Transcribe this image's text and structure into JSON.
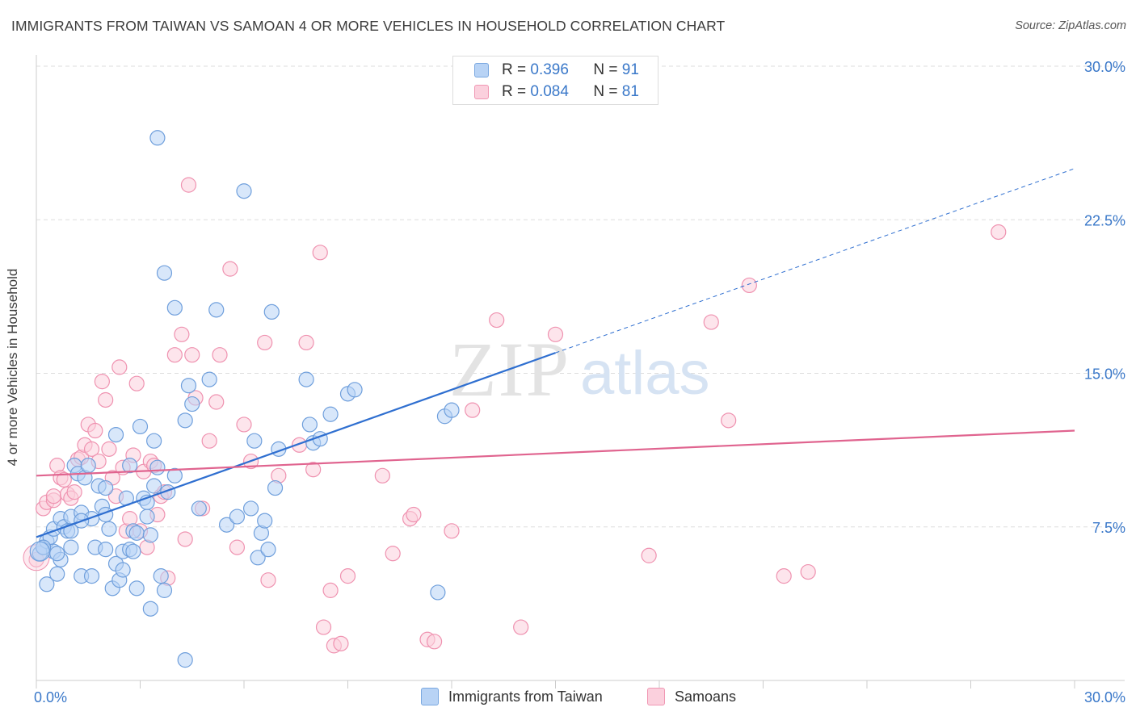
{
  "header": {
    "title": "IMMIGRANTS FROM TAIWAN VS SAMOAN 4 OR MORE VEHICLES IN HOUSEHOLD CORRELATION CHART",
    "source": "Source: ZipAtlas.com"
  },
  "legend_stats": {
    "r_label": "R =",
    "n_label": "N =",
    "rows": [
      {
        "r": "0.396",
        "n": "91"
      },
      {
        "r": "0.084",
        "n": "81"
      }
    ]
  },
  "watermark": {
    "zip": "ZIP",
    "atlas": "atlas"
  },
  "colors": {
    "blue_fill": "#b8d3f5",
    "blue_stroke": "#6f9fdc",
    "blue_line": "#2f6fd0",
    "pink_fill": "#fbd0dd",
    "pink_stroke": "#ef92b0",
    "pink_line": "#e0648f",
    "tick_label": "#3a78c9",
    "grid": "#dddddd"
  },
  "chart_data": {
    "type": "scatter",
    "xlabel": "",
    "ylabel": "4 or more Vehicles in Household",
    "xlim": [
      0,
      30
    ],
    "ylim": [
      0,
      30
    ],
    "x_tick_labels": [
      "0.0%",
      "30.0%"
    ],
    "y_ticks": [
      7.5,
      15.0,
      22.5,
      30.0
    ],
    "y_tick_labels": [
      "7.5%",
      "15.0%",
      "22.5%",
      "30.0%"
    ],
    "grid": "horizontal dashed",
    "legend_position": "top-center and bottom",
    "series": [
      {
        "name": "Immigrants from Taiwan",
        "color": "blue",
        "r": 0.396,
        "n": 91,
        "trend": {
          "x0": 0,
          "y0": 7.0,
          "x1": 15,
          "y1": 16.0,
          "dash_to_x": 30,
          "dash_to_y": 25.0
        },
        "points": [
          [
            0.1,
            6.2
          ],
          [
            0.2,
            6.5
          ],
          [
            0.3,
            6.8
          ],
          [
            0.3,
            4.7
          ],
          [
            0.4,
            7.0
          ],
          [
            0.5,
            7.4
          ],
          [
            0.5,
            6.3
          ],
          [
            0.6,
            5.2
          ],
          [
            0.7,
            7.9
          ],
          [
            0.7,
            5.9
          ],
          [
            0.8,
            7.5
          ],
          [
            0.9,
            7.3
          ],
          [
            1.0,
            6.5
          ],
          [
            1.0,
            8.0
          ],
          [
            1.1,
            10.5
          ],
          [
            1.2,
            10.1
          ],
          [
            1.3,
            5.1
          ],
          [
            1.3,
            8.2
          ],
          [
            1.4,
            9.9
          ],
          [
            1.5,
            10.5
          ],
          [
            1.6,
            7.9
          ],
          [
            1.6,
            5.1
          ],
          [
            1.7,
            6.5
          ],
          [
            1.8,
            9.5
          ],
          [
            1.9,
            8.5
          ],
          [
            2.0,
            9.4
          ],
          [
            2.0,
            6.4
          ],
          [
            2.1,
            7.4
          ],
          [
            2.2,
            4.5
          ],
          [
            2.3,
            12.0
          ],
          [
            2.3,
            5.7
          ],
          [
            2.4,
            4.9
          ],
          [
            2.5,
            6.3
          ],
          [
            2.5,
            5.4
          ],
          [
            2.6,
            8.9
          ],
          [
            2.7,
            6.4
          ],
          [
            2.7,
            10.5
          ],
          [
            2.8,
            7.3
          ],
          [
            2.9,
            4.5
          ],
          [
            2.9,
            7.2
          ],
          [
            3.0,
            12.4
          ],
          [
            3.1,
            8.9
          ],
          [
            3.2,
            8.7
          ],
          [
            3.2,
            8.0
          ],
          [
            3.3,
            3.5
          ],
          [
            3.3,
            7.1
          ],
          [
            3.4,
            9.5
          ],
          [
            3.4,
            11.7
          ],
          [
            3.5,
            10.4
          ],
          [
            3.5,
            26.5
          ],
          [
            3.6,
            5.1
          ],
          [
            3.7,
            4.4
          ],
          [
            3.7,
            19.9
          ],
          [
            4.0,
            10.0
          ],
          [
            4.0,
            18.2
          ],
          [
            4.3,
            1.0
          ],
          [
            4.3,
            12.7
          ],
          [
            4.4,
            14.4
          ],
          [
            4.5,
            13.5
          ],
          [
            4.7,
            8.4
          ],
          [
            5.0,
            14.7
          ],
          [
            5.2,
            18.1
          ],
          [
            5.5,
            7.6
          ],
          [
            5.8,
            8.0
          ],
          [
            6.0,
            23.9
          ],
          [
            6.2,
            8.4
          ],
          [
            6.3,
            11.7
          ],
          [
            6.4,
            6.0
          ],
          [
            6.5,
            7.2
          ],
          [
            6.6,
            7.8
          ],
          [
            6.7,
            6.4
          ],
          [
            6.8,
            18.0
          ],
          [
            6.9,
            9.4
          ],
          [
            7.0,
            11.3
          ],
          [
            7.8,
            14.7
          ],
          [
            7.9,
            12.5
          ],
          [
            8.0,
            11.6
          ],
          [
            8.2,
            11.8
          ],
          [
            8.5,
            13.0
          ],
          [
            9.0,
            14.0
          ],
          [
            9.2,
            14.2
          ],
          [
            11.6,
            4.3
          ],
          [
            11.8,
            12.9
          ],
          [
            12.0,
            13.2
          ],
          [
            0.2,
            6.5
          ],
          [
            0.6,
            6.2
          ],
          [
            1.0,
            7.3
          ],
          [
            1.3,
            7.8
          ],
          [
            2.0,
            8.1
          ],
          [
            2.8,
            6.3
          ],
          [
            3.8,
            9.2
          ]
        ]
      },
      {
        "name": "Samoans",
        "color": "pink",
        "r": 0.084,
        "n": 81,
        "trend": {
          "x0": 0,
          "y0": 10.0,
          "x1": 30,
          "y1": 12.2
        },
        "points": [
          [
            0.0,
            5.9
          ],
          [
            0.2,
            8.4
          ],
          [
            0.3,
            8.7
          ],
          [
            0.5,
            8.8
          ],
          [
            0.5,
            9.0
          ],
          [
            0.6,
            10.5
          ],
          [
            0.7,
            9.9
          ],
          [
            0.8,
            9.8
          ],
          [
            0.9,
            9.1
          ],
          [
            1.0,
            8.9
          ],
          [
            1.1,
            9.2
          ],
          [
            1.2,
            10.8
          ],
          [
            1.3,
            10.9
          ],
          [
            1.4,
            11.5
          ],
          [
            1.5,
            12.5
          ],
          [
            1.6,
            11.3
          ],
          [
            1.7,
            12.2
          ],
          [
            1.8,
            10.7
          ],
          [
            1.9,
            14.6
          ],
          [
            2.0,
            13.7
          ],
          [
            2.1,
            11.3
          ],
          [
            2.2,
            9.9
          ],
          [
            2.3,
            9.0
          ],
          [
            2.4,
            15.3
          ],
          [
            2.5,
            10.4
          ],
          [
            2.6,
            7.3
          ],
          [
            2.7,
            7.9
          ],
          [
            2.8,
            11.0
          ],
          [
            2.9,
            14.5
          ],
          [
            3.0,
            7.3
          ],
          [
            3.1,
            10.2
          ],
          [
            3.2,
            6.5
          ],
          [
            3.3,
            10.7
          ],
          [
            3.4,
            10.5
          ],
          [
            3.5,
            8.1
          ],
          [
            3.6,
            9.0
          ],
          [
            3.7,
            9.2
          ],
          [
            3.8,
            5.0
          ],
          [
            4.0,
            15.9
          ],
          [
            4.2,
            16.9
          ],
          [
            4.3,
            6.9
          ],
          [
            4.4,
            24.2
          ],
          [
            4.5,
            15.9
          ],
          [
            4.6,
            13.8
          ],
          [
            4.8,
            8.4
          ],
          [
            5.0,
            11.7
          ],
          [
            5.2,
            13.6
          ],
          [
            5.3,
            15.9
          ],
          [
            5.6,
            20.1
          ],
          [
            5.8,
            6.5
          ],
          [
            6.0,
            12.5
          ],
          [
            6.2,
            10.7
          ],
          [
            6.6,
            16.5
          ],
          [
            6.7,
            4.9
          ],
          [
            7.0,
            10.0
          ],
          [
            7.6,
            11.5
          ],
          [
            7.8,
            16.5
          ],
          [
            8.0,
            10.3
          ],
          [
            8.2,
            20.9
          ],
          [
            8.3,
            2.6
          ],
          [
            8.5,
            4.4
          ],
          [
            8.6,
            1.7
          ],
          [
            8.8,
            1.8
          ],
          [
            9.0,
            5.1
          ],
          [
            10.0,
            10.0
          ],
          [
            10.3,
            6.2
          ],
          [
            10.8,
            7.9
          ],
          [
            10.9,
            8.1
          ],
          [
            11.3,
            2.0
          ],
          [
            11.5,
            1.9
          ],
          [
            12.0,
            7.3
          ],
          [
            12.6,
            13.2
          ],
          [
            13.3,
            17.6
          ],
          [
            14.0,
            2.6
          ],
          [
            15.0,
            16.9
          ],
          [
            17.7,
            6.1
          ],
          [
            19.5,
            17.5
          ],
          [
            20.0,
            12.7
          ],
          [
            20.6,
            19.3
          ],
          [
            21.6,
            5.1
          ],
          [
            22.3,
            5.3
          ]
        ],
        "outlier_point": [
          27.8,
          21.9
        ]
      }
    ]
  },
  "bottom_legend": [
    {
      "label": "Immigrants from Taiwan"
    },
    {
      "label": "Samoans"
    }
  ]
}
